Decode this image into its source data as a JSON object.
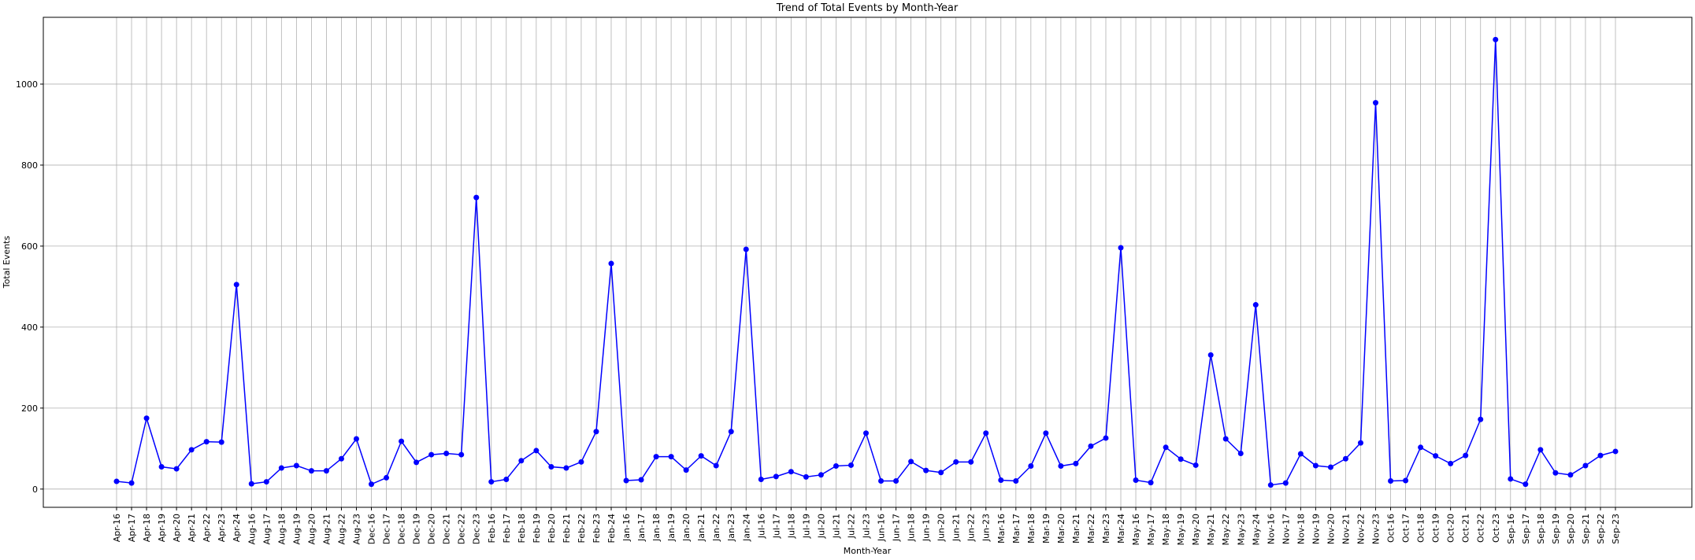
{
  "chart_data": {
    "type": "line",
    "title": "Trend of Total Events by Month-Year",
    "xlabel": "Month-Year",
    "ylabel": "Total Events",
    "categories": [
      "Apr-16",
      "Apr-17",
      "Apr-18",
      "Apr-19",
      "Apr-20",
      "Apr-21",
      "Apr-22",
      "Apr-23",
      "Apr-24",
      "Aug-16",
      "Aug-17",
      "Aug-18",
      "Aug-19",
      "Aug-20",
      "Aug-21",
      "Aug-22",
      "Aug-23",
      "Dec-16",
      "Dec-17",
      "Dec-18",
      "Dec-19",
      "Dec-20",
      "Dec-21",
      "Dec-22",
      "Dec-23",
      "Feb-16",
      "Feb-17",
      "Feb-18",
      "Feb-19",
      "Feb-20",
      "Feb-21",
      "Feb-22",
      "Feb-23",
      "Feb-24",
      "Jan-16",
      "Jan-17",
      "Jan-18",
      "Jan-19",
      "Jan-20",
      "Jan-21",
      "Jan-22",
      "Jan-23",
      "Jan-24",
      "Jul-16",
      "Jul-17",
      "Jul-18",
      "Jul-19",
      "Jul-20",
      "Jul-21",
      "Jul-22",
      "Jul-23",
      "Jun-16",
      "Jun-17",
      "Jun-18",
      "Jun-19",
      "Jun-20",
      "Jun-21",
      "Jun-22",
      "Jun-23",
      "Mar-16",
      "Mar-17",
      "Mar-18",
      "Mar-19",
      "Mar-20",
      "Mar-21",
      "Mar-22",
      "Mar-23",
      "Mar-24",
      "May-16",
      "May-17",
      "May-18",
      "May-19",
      "May-20",
      "May-21",
      "May-22",
      "May-23",
      "May-24",
      "Nov-16",
      "Nov-17",
      "Nov-18",
      "Nov-19",
      "Nov-20",
      "Nov-21",
      "Nov-22",
      "Nov-23",
      "Oct-16",
      "Oct-17",
      "Oct-18",
      "Oct-19",
      "Oct-20",
      "Oct-21",
      "Oct-22",
      "Oct-23",
      "Sep-16",
      "Sep-17",
      "Sep-18",
      "Sep-19",
      "Sep-20",
      "Sep-21",
      "Sep-22",
      "Sep-23"
    ],
    "values": [
      19,
      15,
      175,
      55,
      50,
      97,
      117,
      116,
      505,
      13,
      18,
      52,
      58,
      45,
      45,
      75,
      124,
      12,
      28,
      118,
      66,
      85,
      88,
      85,
      720,
      18,
      24,
      70,
      95,
      55,
      52,
      67,
      142,
      557,
      21,
      23,
      80,
      80,
      47,
      82,
      58,
      142,
      592,
      24,
      31,
      43,
      30,
      35,
      57,
      59,
      138,
      20,
      20,
      68,
      46,
      41,
      67,
      67,
      138,
      22,
      20,
      57,
      138,
      57,
      63,
      106,
      126,
      596,
      22,
      16,
      103,
      74,
      59,
      331,
      124,
      88,
      455,
      10,
      15,
      87,
      58,
      54,
      75,
      114,
      954,
      20,
      21,
      103,
      82,
      63,
      83,
      172,
      1110,
      25,
      12,
      97,
      40,
      35,
      58,
      83,
      93
    ],
    "color": "#0000ff",
    "ylim": [
      -45,
      1165
    ],
    "yticks": [
      0,
      200,
      400,
      600,
      800,
      1000
    ],
    "grid": true
  }
}
